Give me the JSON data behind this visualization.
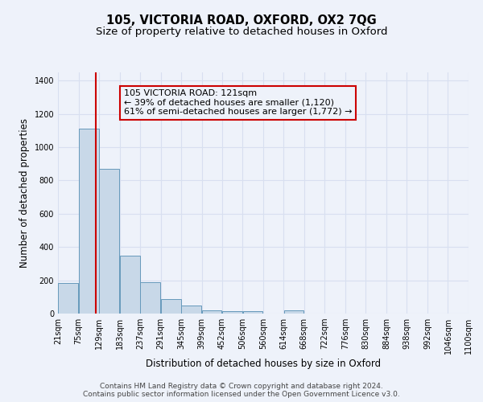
{
  "title": "105, VICTORIA ROAD, OXFORD, OX2 7QG",
  "subtitle": "Size of property relative to detached houses in Oxford",
  "xlabel": "Distribution of detached houses by size in Oxford",
  "ylabel": "Number of detached properties",
  "footer_line1": "Contains HM Land Registry data © Crown copyright and database right 2024.",
  "footer_line2": "Contains public sector information licensed under the Open Government Licence v3.0.",
  "annotation_line1": "105 VICTORIA ROAD: 121sqm",
  "annotation_line2": "← 39% of detached houses are smaller (1,120)",
  "annotation_line3": "61% of semi-detached houses are larger (1,772) →",
  "property_size": 121,
  "bin_edges": [
    21,
    75,
    129,
    183,
    237,
    291,
    345,
    399,
    452,
    506,
    560,
    614,
    668,
    722,
    776,
    830,
    884,
    938,
    992,
    1046,
    1100
  ],
  "bar_heights": [
    185,
    1110,
    870,
    350,
    190,
    85,
    50,
    20,
    15,
    15,
    0,
    20,
    0,
    0,
    0,
    0,
    0,
    0,
    0,
    0
  ],
  "bar_color": "#c8d8e8",
  "bar_edge_color": "#6699bb",
  "marker_color": "#cc0000",
  "annotation_box_edge_color": "#cc0000",
  "ylim": [
    0,
    1450
  ],
  "yticks": [
    0,
    200,
    400,
    600,
    800,
    1000,
    1200,
    1400
  ],
  "grid_color": "#d8dff0",
  "background_color": "#eef2fa",
  "title_fontsize": 10.5,
  "subtitle_fontsize": 9.5,
  "tick_fontsize": 7,
  "label_fontsize": 8.5,
  "footer_fontsize": 6.5,
  "annotation_fontsize": 8
}
